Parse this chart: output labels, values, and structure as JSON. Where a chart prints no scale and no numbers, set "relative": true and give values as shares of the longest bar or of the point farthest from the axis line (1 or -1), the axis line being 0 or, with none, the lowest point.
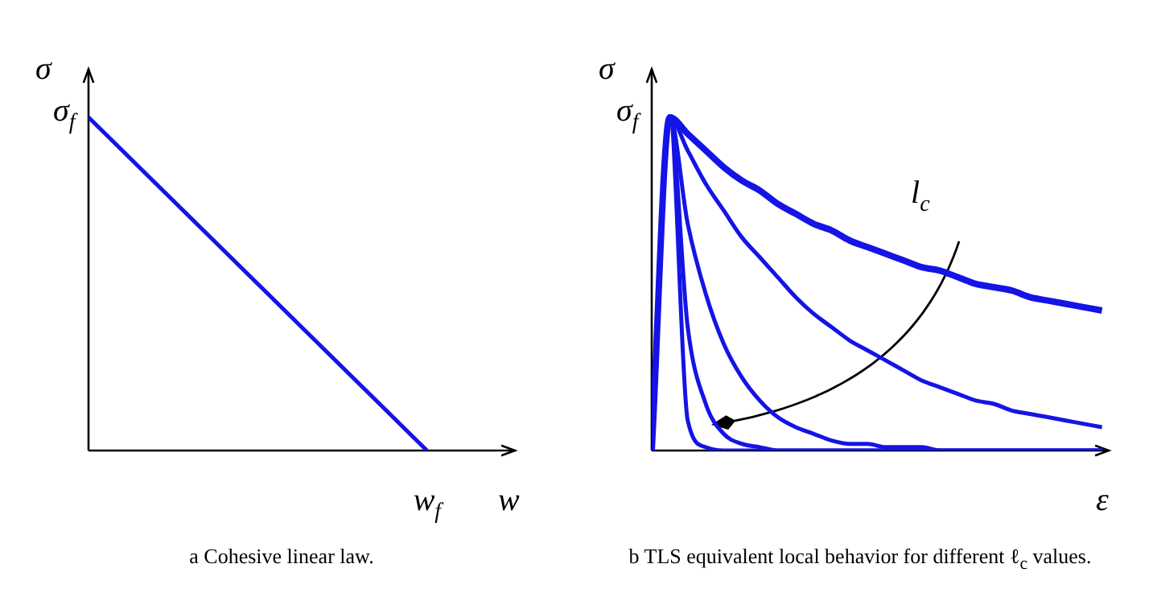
{
  "chart_data": [
    {
      "type": "line",
      "title": "a Cohesive linear law.",
      "xlabel": "w",
      "ylabel": "σ",
      "relative": true,
      "categories": [
        null,
        null
      ],
      "series": [
        {
          "color": "#1414e6",
          "values": [
            1,
            0
          ]
        }
      ],
      "annotations": [
        "σ$_{f}$",
        {
          "text": "w$_{f}$",
          "y": 0
        }
      ]
    },
    {
      "type": "line",
      "title": "b TLS equivalent local behavior for different ℓ$_{c}$ values.",
      "xlabel": "ε",
      "ylabel": "σ",
      "relative": true,
      "categories": [
        null,
        null,
        null,
        null,
        null,
        null,
        null,
        null,
        null,
        null,
        null,
        null,
        null,
        null,
        null,
        null,
        null,
        null,
        null,
        null,
        null,
        null,
        null,
        null,
        null,
        null
      ],
      "series": [
        {
          "color": "#1414e6",
          "values": [
            0,
            1,
            0.95,
            0.9,
            0.85,
            0.81,
            0.78,
            0.74,
            0.71,
            0.68,
            0.66,
            0.63,
            0.61,
            0.59,
            0.57,
            0.55,
            0.54,
            0.52,
            0.5,
            0.49,
            0.48,
            0.46,
            0.45,
            0.44,
            0.43,
            0.42
          ]
        },
        {
          "color": "#1414e6",
          "values": [
            0,
            1,
            0.9,
            0.8,
            0.72,
            0.64,
            0.58,
            0.52,
            0.46,
            0.41,
            0.37,
            0.33,
            0.3,
            0.27,
            0.24,
            0.21,
            0.19,
            0.17,
            0.15,
            0.14,
            0.12,
            0.11,
            0.1,
            0.09,
            0.08,
            0.07
          ]
        },
        {
          "color": "#1414e6",
          "values": [
            0,
            1,
            0.68,
            0.47,
            0.32,
            0.22,
            0.15,
            0.1,
            0.07,
            0.05,
            0.03,
            0.02,
            0.02,
            0.01,
            0.01,
            0.01,
            0,
            0,
            0,
            0,
            0,
            0,
            0,
            0,
            0,
            0
          ]
        },
        {
          "color": "#1414e6",
          "values": [
            0,
            1,
            0.37,
            0.14,
            0.05,
            0.02,
            0.01,
            0,
            0,
            0,
            0,
            0,
            0,
            0,
            0,
            0,
            0,
            0,
            0,
            0,
            0,
            0,
            0,
            0,
            0,
            0
          ]
        },
        {
          "color": "#1414e6",
          "values": [
            0,
            1,
            0.09,
            0.01,
            0,
            0,
            0,
            0,
            0,
            0,
            0,
            0,
            0,
            0,
            0,
            0,
            0,
            0,
            0,
            0,
            0,
            0,
            0,
            0,
            0,
            0
          ]
        }
      ],
      "annotations": [
        "σ$_{f}$",
        "l$_{c}$"
      ]
    }
  ]
}
